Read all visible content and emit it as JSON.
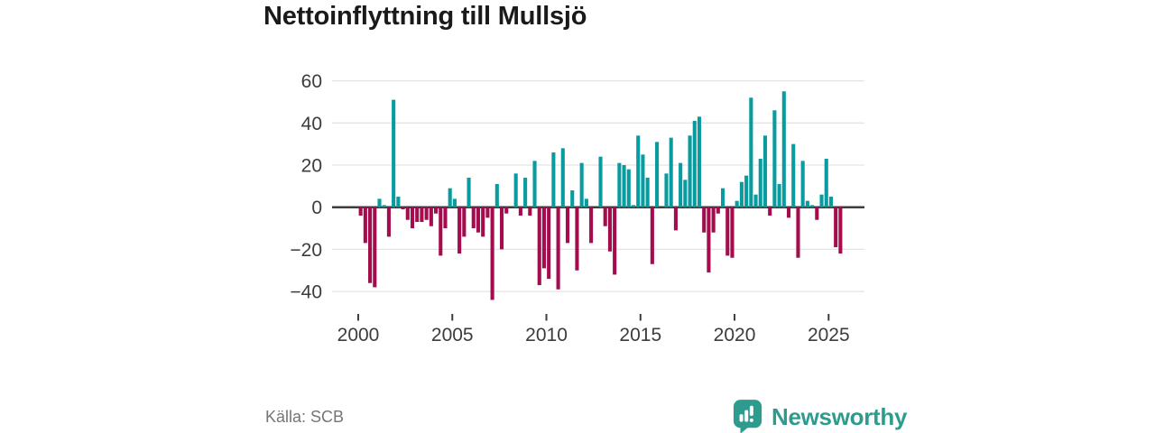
{
  "header": {
    "title": "Nettoinflyttning till Mullsjö"
  },
  "chart_data": {
    "type": "bar",
    "title": "Nettoinflyttning till Mullsjö",
    "ylabel": "",
    "xlabel": "",
    "frequency": "quarterly",
    "x_start": "2000Q1",
    "x_end": "2025Q3",
    "x_tick_years": [
      2000,
      2005,
      2010,
      2015,
      2020,
      2025
    ],
    "y_ticks": [
      60,
      40,
      20,
      0,
      -20,
      -40
    ],
    "y_tick_labels": [
      "60",
      "40",
      "20",
      "0",
      "−20",
      "−40"
    ],
    "ylim": [
      -48,
      64
    ],
    "grid": "horizontal",
    "legend": "none",
    "colors": {
      "positive": "#089ca0",
      "negative": "#a40d4d"
    },
    "values_by_year": {
      "2000": [
        -4,
        -17,
        -36,
        -38
      ],
      "2001": [
        4,
        1,
        -14,
        51
      ],
      "2002": [
        5,
        -1,
        -6,
        -10
      ],
      "2003": [
        -7,
        -7,
        -6,
        -9
      ],
      "2004": [
        -3,
        -23,
        -10,
        9
      ],
      "2005": [
        4,
        -22,
        -14,
        14
      ],
      "2006": [
        -10,
        -12,
        -14,
        -5
      ],
      "2007": [
        -44,
        11,
        -20,
        -3
      ],
      "2008": [
        0,
        16,
        -4,
        14
      ],
      "2009": [
        -4,
        22,
        -37,
        -29
      ],
      "2010": [
        -34,
        26,
        -39,
        28
      ],
      "2011": [
        -17,
        8,
        -30,
        21
      ],
      "2012": [
        4,
        -17,
        0,
        24
      ],
      "2013": [
        -9,
        -21,
        -32,
        21
      ],
      "2014": [
        20,
        18,
        1,
        34
      ],
      "2015": [
        25,
        14,
        -27,
        31
      ],
      "2016": [
        0,
        16,
        33,
        -11
      ],
      "2017": [
        21,
        13,
        34,
        41
      ],
      "2018": [
        43,
        -12,
        -31,
        -12
      ],
      "2019": [
        -3,
        9,
        -23,
        -24
      ],
      "2020": [
        3,
        12,
        15,
        52
      ],
      "2021": [
        6,
        23,
        34,
        -4
      ],
      "2022": [
        46,
        11,
        55,
        -5
      ],
      "2023": [
        30,
        -24,
        22,
        3
      ],
      "2024": [
        1,
        -6,
        6,
        23
      ],
      "2025": [
        5,
        -19,
        -22
      ]
    }
  },
  "footer": {
    "source": "Källa: SCB",
    "brand": "Newsworthy",
    "brand_color": "#2d9c8f"
  }
}
